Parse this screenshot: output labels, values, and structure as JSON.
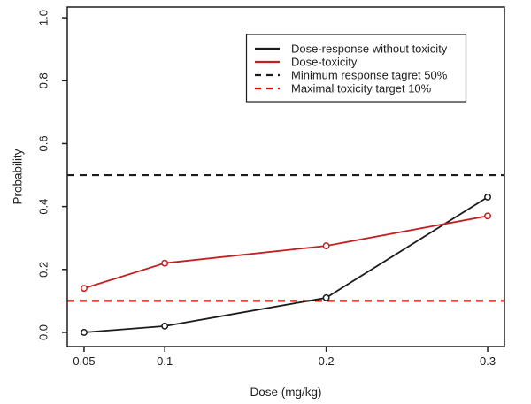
{
  "figure": {
    "background": "#ffffff",
    "text_color": "#1e1e1e"
  },
  "chart_data": {
    "type": "line",
    "title": "",
    "xlabel": "Dose (mg/kg)",
    "ylabel": "Probability",
    "x": [
      0.05,
      0.1,
      0.2,
      0.3
    ],
    "x_tick_labels": [
      "0.05",
      "0.1",
      "0.2",
      "0.3"
    ],
    "y_ticks": [
      0.0,
      0.2,
      0.4,
      0.6,
      0.8,
      1.0
    ],
    "y_tick_labels": [
      "0.0",
      "0.2",
      "0.4",
      "0.6",
      "0.8",
      "1.0"
    ],
    "xlim": [
      0.0396,
      0.3104
    ],
    "ylim": [
      -0.045,
      1.034
    ],
    "grid": false,
    "legend_position": "top-center-inside",
    "series": [
      {
        "name": "Dose-response without toxicity",
        "color": "#1b1b1b",
        "dash": false,
        "marker": "open-circle",
        "values": [
          0.0,
          0.02,
          0.11,
          0.43
        ]
      },
      {
        "name": "Dose-toxicity",
        "color": "#c42020",
        "dash": false,
        "marker": "open-circle",
        "values": [
          0.14,
          0.22,
          0.275,
          0.37
        ]
      }
    ],
    "reference_lines": [
      {
        "name": "Minimum response tagret 50%",
        "value": 0.5,
        "color": "#1b1b1b",
        "dash": true
      },
      {
        "name": "Maximal toxicity target 10%",
        "value": 0.1,
        "color": "#e60000",
        "dash": true
      }
    ],
    "legend": {
      "entries": [
        {
          "label": "Dose-response without toxicity",
          "color": "#1b1b1b",
          "dash": false
        },
        {
          "label": "Dose-toxicity",
          "color": "#c42020",
          "dash": false
        },
        {
          "label": "Minimum response tagret 50%",
          "color": "#1b1b1b",
          "dash": true
        },
        {
          "label": "Maximal toxicity target 10%",
          "color": "#e60000",
          "dash": true
        }
      ]
    }
  }
}
